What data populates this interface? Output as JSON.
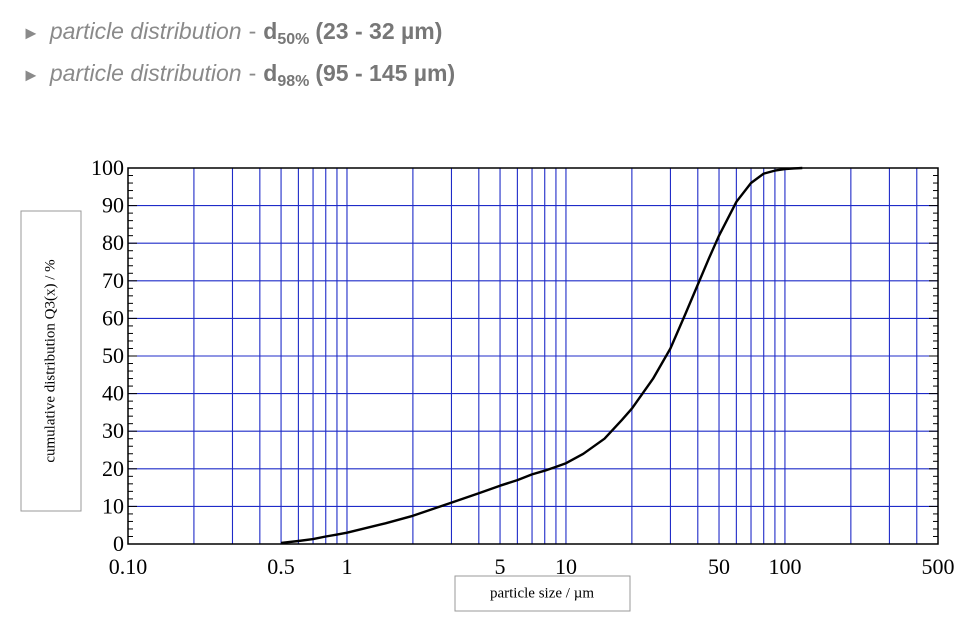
{
  "bullets": [
    {
      "arrow": "►",
      "desc": "particle distribution",
      "sep": "-",
      "symbol": "d",
      "subscript": "50%",
      "range": "(23 - 32 µm)"
    },
    {
      "arrow": "►",
      "desc": "particle distribution",
      "sep": "-",
      "symbol": "d",
      "subscript": "98%",
      "range": "(95 - 145 µm)"
    }
  ],
  "chart_data": {
    "type": "line",
    "x_scale": "log",
    "xlabel": "particle size / µm",
    "ylabel": "cumulative distribution Q3(x) / %",
    "xlim": [
      0.1,
      500
    ],
    "ylim": [
      0,
      100
    ],
    "x_ticks": [
      "0.10",
      "0.5",
      "1",
      "5",
      "10",
      "50",
      "100",
      "500"
    ],
    "x_tick_values": [
      0.1,
      0.5,
      1,
      5,
      10,
      50,
      100,
      500
    ],
    "y_ticks": [
      "0",
      "10",
      "20",
      "30",
      "40",
      "50",
      "60",
      "70",
      "80",
      "90",
      "100"
    ],
    "grid": true,
    "grid_color": "#1f2bc8",
    "line_color": "#000000",
    "series": [
      {
        "x": [
          0.5,
          0.6,
          0.7,
          0.8,
          0.9,
          1,
          1.5,
          2,
          3,
          4,
          5,
          6,
          7,
          8,
          9,
          10,
          12,
          15,
          18,
          20,
          25,
          30,
          35,
          40,
          45,
          50,
          60,
          70,
          80,
          90,
          100,
          110,
          120
        ],
        "y": [
          0.3,
          0.8,
          1.3,
          2,
          2.5,
          3,
          5.5,
          7.5,
          11,
          13.5,
          15.5,
          17,
          18.5,
          19.5,
          20.5,
          21.5,
          24,
          28,
          33,
          36,
          44,
          52,
          61,
          69,
          76,
          82,
          91,
          96,
          98.5,
          99.3,
          99.7,
          99.9,
          100
        ]
      }
    ]
  }
}
